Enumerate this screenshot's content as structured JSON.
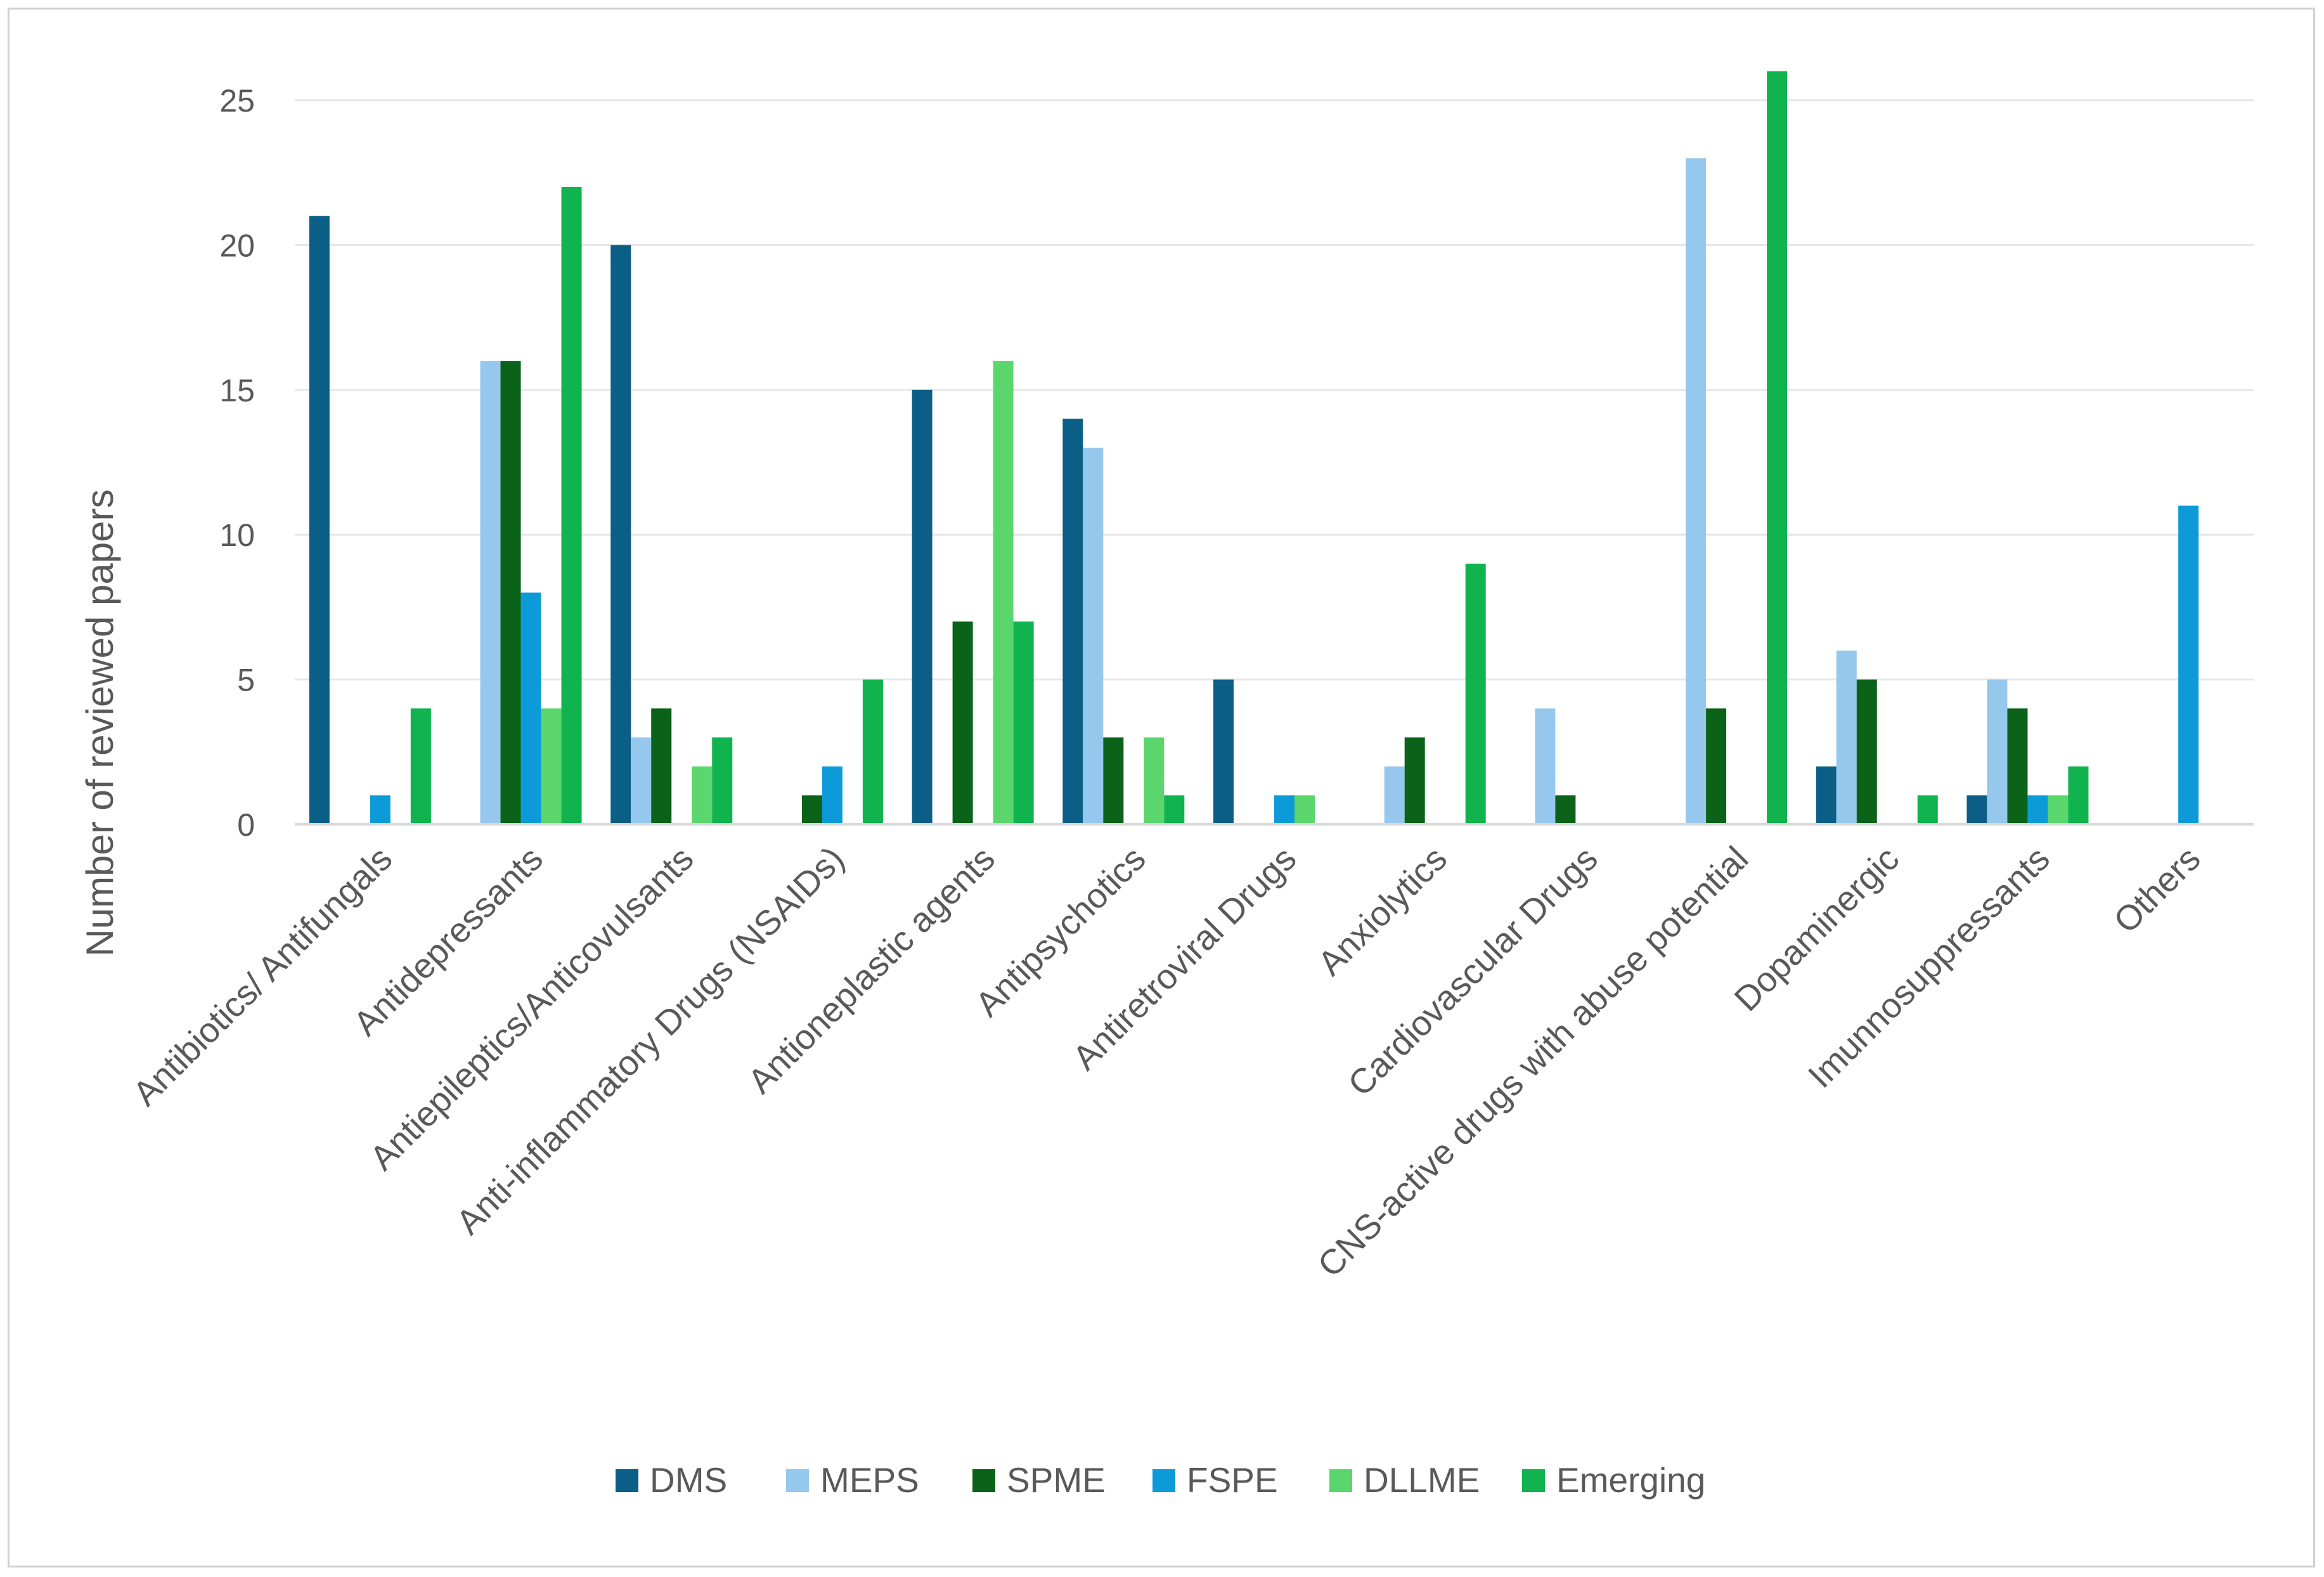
{
  "chart_data": {
    "type": "bar",
    "title": "",
    "xlabel": "",
    "ylabel": "Number of reviewed papers",
    "ylim": [
      0,
      25
    ],
    "yticks": [
      0,
      5,
      10,
      15,
      20,
      25
    ],
    "grid": true,
    "legend_position": "bottom",
    "categories": [
      "Antibiotics/ Antifungals",
      "Antidepressants",
      "Antiepileptics/Anticovulsants",
      "Anti-inflammatory Drugs (NSAIDs)",
      "Antioneplastic agents",
      "Antipsychotics",
      "Antiretroviral Drugs",
      "Anxiolytics",
      "Cardiovascular Drugs",
      "CNS-active drugs with abuse potential",
      "Dopaminergic",
      "Imunnosuppressants",
      "Others"
    ],
    "series": [
      {
        "name": "DMS",
        "color": "#0b5f86",
        "values": [
          21,
          0,
          20,
          0,
          15,
          14,
          5,
          0,
          0,
          0,
          2,
          1,
          0
        ]
      },
      {
        "name": "MEPS",
        "color": "#96c8ee",
        "values": [
          0,
          16,
          3,
          0,
          0,
          13,
          0,
          2,
          4,
          23,
          6,
          5,
          0
        ]
      },
      {
        "name": "SPME",
        "color": "#0a6318",
        "values": [
          0,
          16,
          4,
          1,
          7,
          3,
          0,
          3,
          1,
          4,
          5,
          4,
          0
        ]
      },
      {
        "name": "FSPE",
        "color": "#0c9bd8",
        "values": [
          1,
          8,
          0,
          2,
          0,
          0,
          1,
          0,
          0,
          0,
          0,
          1,
          11
        ]
      },
      {
        "name": "DLLME",
        "color": "#5ad66d",
        "values": [
          0,
          4,
          2,
          0,
          16,
          3,
          1,
          0,
          0,
          0,
          0,
          1,
          0
        ]
      },
      {
        "name": "Emerging",
        "color": "#10b34e",
        "values": [
          4,
          22,
          3,
          5,
          7,
          1,
          0,
          9,
          0,
          26,
          1,
          2,
          0
        ]
      }
    ]
  }
}
